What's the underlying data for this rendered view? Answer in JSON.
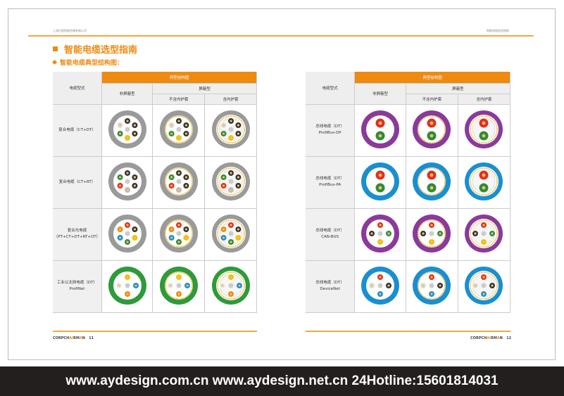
{
  "left_page": {
    "header": "上海古程智能传输有限公司",
    "title": "智能电缆选型指南",
    "subtitle": "智能电缆典型结构图：",
    "footer_brand": [
      "CORPCH",
      "AI",
      "RM",
      "A",
      "N"
    ],
    "page_number": "11"
  },
  "right_page": {
    "header": "智能电缆选型指南",
    "footer_brand": [
      "CORPCH",
      "AI",
      "RM",
      "A",
      "N"
    ],
    "page_number": "12"
  },
  "table_headers": {
    "type": "电缆型式",
    "structure": "典型结构图",
    "unshielded": "非屏蔽型",
    "shielded": "屏蔽型",
    "no_inner": "不含内护套",
    "inner": "含内护套"
  },
  "left_rows": [
    {
      "label1": "复合电缆（CT+DT）",
      "label2": "",
      "sheath": "#9a9a9a",
      "core": [
        "#333",
        "#333",
        "#333",
        "#f5c000",
        "#2e8b3a",
        "#ddd"
      ]
    },
    {
      "label1": "复合电缆（CT+RT）",
      "label2": "",
      "sheath": "#9a9a9a",
      "core": [
        "#333",
        "#333",
        "#333",
        "#bbb",
        "#e03020",
        "#2e8b3a"
      ]
    },
    {
      "label1": "复合光电缆",
      "label2": "（PT+CT+DT+RT+OT）",
      "sheath": "#9a9a9a",
      "core": [
        "#e03020",
        "#333",
        "#f5c000",
        "#2e8b3a",
        "#1a8fd0",
        "#ee8a10"
      ]
    },
    {
      "label1": "工业以太网电缆（DT）",
      "label2": "ProfiNet",
      "sheath": "#2e9a3a",
      "core": [
        "#f5c000",
        "#1a8fd0",
        "#ee8a10",
        "#e8e8e8"
      ]
    }
  ],
  "right_rows": [
    {
      "label1": "总线电缆（DT）",
      "label2": "ProfiBus-DP",
      "sheath": "#8a3a9a",
      "core": [
        "#e03020",
        "#2e8b3a"
      ]
    },
    {
      "label1": "总线电缆（DT）",
      "label2": "ProfiBus-PA",
      "sheath": "#1a8fd0",
      "core": [
        "#e03020",
        "#2e8b3a"
      ]
    },
    {
      "label1": "总线电缆（DT）",
      "label2": "CAN-BUS",
      "sheath": "#8a3a9a",
      "core": [
        "#e03020",
        "#2e8b3a",
        "#f5c000",
        "#333"
      ]
    },
    {
      "label1": "总线电缆（DT）",
      "label2": "DeviceNet",
      "sheath": "#1a8fd0",
      "core": [
        "#e03020",
        "#333",
        "#1a8fd0",
        "#ddd"
      ]
    }
  ],
  "banner": "www.aydesign.com.cn www.aydesign.net.cn 24Hotline:15601814031"
}
